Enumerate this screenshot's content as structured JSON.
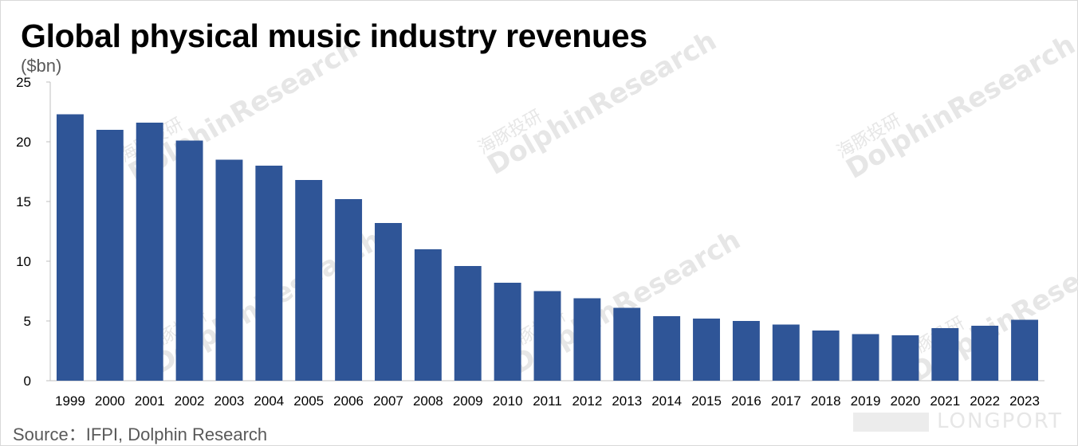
{
  "title": "Global physical music industry revenues",
  "unit_label": "($bn)",
  "source": "Source：IFPI, Dolphin Research",
  "watermarks": {
    "brand": "DolphinResearch",
    "brand_cn": "海豚投研",
    "corner_logo": "LONGPORT"
  },
  "colors": {
    "bar": "#2f5597",
    "axis": "#bfbfbf",
    "text": "#000000",
    "watermark": "#e6e6e6"
  },
  "chart_data": {
    "type": "bar",
    "title": "Global physical music industry revenues",
    "ylabel": "($bn)",
    "xlabel": "",
    "categories": [
      "1999",
      "2000",
      "2001",
      "2002",
      "2003",
      "2004",
      "2005",
      "2006",
      "2007",
      "2008",
      "2009",
      "2010",
      "2011",
      "2012",
      "2013",
      "2014",
      "2015",
      "2016",
      "2017",
      "2018",
      "2019",
      "2020",
      "2021",
      "2022",
      "2023"
    ],
    "values": [
      22.3,
      21.0,
      21.6,
      20.1,
      18.5,
      18.0,
      16.8,
      15.2,
      13.2,
      11.0,
      9.6,
      8.2,
      7.5,
      6.9,
      6.1,
      5.4,
      5.2,
      5.0,
      4.7,
      4.2,
      3.9,
      3.8,
      4.4,
      4.6,
      5.1
    ],
    "ylim": [
      0,
      25
    ],
    "yticks": [
      "0",
      "5",
      "10",
      "15",
      "20",
      "25"
    ],
    "grid": false,
    "legend": "none"
  }
}
